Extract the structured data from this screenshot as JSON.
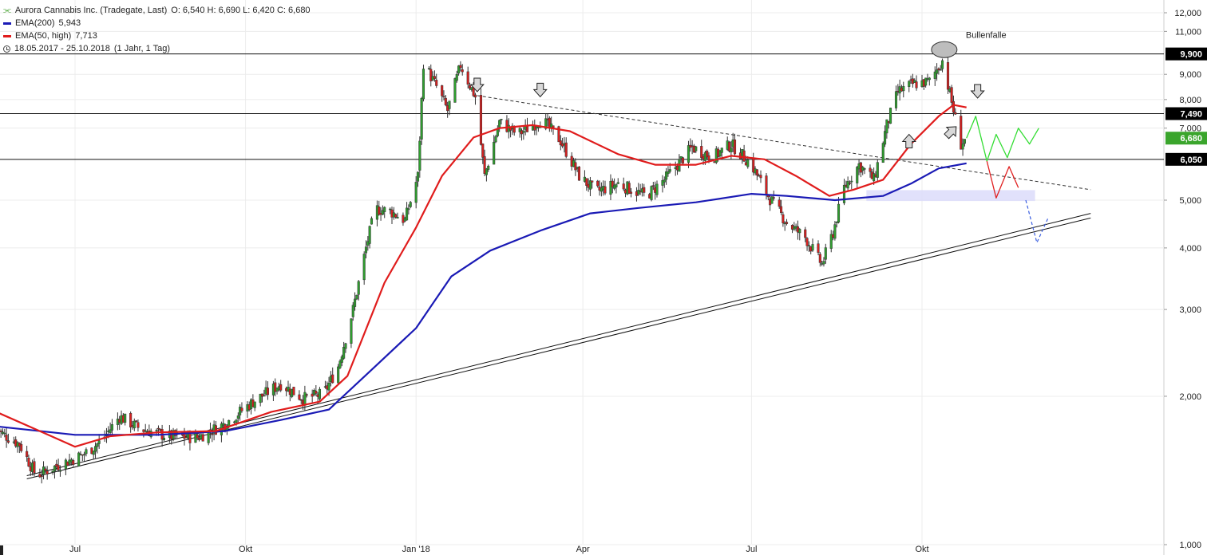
{
  "header": {
    "symbol_icon": "chart-icon",
    "title": "Aurora Cannabis Inc. (Tradegate, Last)",
    "ohlc": "O: 6,540  H: 6,690  L: 6,420  C: 6,680",
    "ema200_label": "EMA(200)",
    "ema200_value": "5,943",
    "ema50_label": "EMA(50, high)",
    "ema50_value": "7,713",
    "period": "18.05.2017 - 25.10.2018",
    "period_detail": "(1 Jahr, 1 Tag)",
    "colors": {
      "ema200": "#1a1ab5",
      "ema50": "#e01c1c",
      "up": "#2f9e2f",
      "down": "#d62020"
    }
  },
  "annotation_text": "Bullenfalle",
  "chart_data": {
    "type": "candlestick",
    "x_axis_labels": [
      "Jul",
      "Okt",
      "Jan '18",
      "Apr",
      "Jul",
      "Okt"
    ],
    "x_label_dates": [
      "2017-07-01",
      "2017-10-01",
      "2018-01-01",
      "2018-04-01",
      "2018-07-01",
      "2018-10-01"
    ],
    "x_range": [
      "2017-05-18",
      "2018-10-25"
    ],
    "y_scale": "log",
    "y_range": [
      1.0,
      12.5
    ],
    "y_ticks": [
      {
        "v": 12,
        "t": "12,000"
      },
      {
        "v": 11,
        "t": "11,000"
      },
      {
        "v": 9,
        "t": "9,000"
      },
      {
        "v": 8,
        "t": "8,000"
      },
      {
        "v": 7,
        "t": "7,000"
      },
      {
        "v": 5,
        "t": "5,000"
      },
      {
        "v": 4,
        "t": "4,000"
      },
      {
        "v": 3,
        "t": "3,000"
      },
      {
        "v": 2,
        "t": "2,000"
      },
      {
        "v": 1,
        "t": "1,000"
      }
    ],
    "price_markers": [
      {
        "v": 9.9,
        "t": "9,900",
        "color": "#000000"
      },
      {
        "v": 7.49,
        "t": "7,490",
        "color": "#000000"
      },
      {
        "v": 6.68,
        "t": "6,680",
        "color": "#3aa52c"
      },
      {
        "v": 6.05,
        "t": "6,050",
        "color": "#000000"
      }
    ],
    "horizontal_lines": [
      9.9,
      7.49,
      6.05
    ],
    "close_series_approx": [
      [
        "2017-05-18",
        1.72
      ],
      [
        "2017-06-01",
        1.6
      ],
      [
        "2017-06-10",
        1.38
      ],
      [
        "2017-06-22",
        1.45
      ],
      [
        "2017-07-05",
        1.52
      ],
      [
        "2017-07-15",
        1.62
      ],
      [
        "2017-07-25",
        1.82
      ],
      [
        "2017-08-05",
        1.72
      ],
      [
        "2017-08-20",
        1.66
      ],
      [
        "2017-09-05",
        1.65
      ],
      [
        "2017-09-20",
        1.76
      ],
      [
        "2017-10-05",
        1.95
      ],
      [
        "2017-10-20",
        2.12
      ],
      [
        "2017-11-01",
        1.98
      ],
      [
        "2017-11-12",
        2.02
      ],
      [
        "2017-11-20",
        2.3
      ],
      [
        "2017-11-28",
        3.0
      ],
      [
        "2017-12-05",
        4.0
      ],
      [
        "2017-12-10",
        4.8
      ],
      [
        "2017-12-18",
        4.75
      ],
      [
        "2017-12-26",
        4.55
      ],
      [
        "2018-01-02",
        5.6
      ],
      [
        "2018-01-05",
        9.5
      ],
      [
        "2018-01-12",
        8.5
      ],
      [
        "2018-01-18",
        7.6
      ],
      [
        "2018-01-25",
        9.4
      ],
      [
        "2018-02-02",
        8.1
      ],
      [
        "2018-02-07",
        5.6
      ],
      [
        "2018-02-15",
        7.2
      ],
      [
        "2018-02-25",
        6.8
      ],
      [
        "2018-03-10",
        7.3
      ],
      [
        "2018-03-20",
        6.6
      ],
      [
        "2018-03-30",
        5.6
      ],
      [
        "2018-04-08",
        5.2
      ],
      [
        "2018-04-20",
        5.4
      ],
      [
        "2018-05-05",
        5.1
      ],
      [
        "2018-05-15",
        5.5
      ],
      [
        "2018-05-30",
        6.4
      ],
      [
        "2018-06-10",
        6.1
      ],
      [
        "2018-06-20",
        6.5
      ],
      [
        "2018-07-01",
        5.9
      ],
      [
        "2018-07-10",
        5.1
      ],
      [
        "2018-07-20",
        4.5
      ],
      [
        "2018-07-30",
        4.2
      ],
      [
        "2018-08-08",
        3.7
      ],
      [
        "2018-08-14",
        4.3
      ],
      [
        "2018-08-20",
        5.3
      ],
      [
        "2018-08-28",
        5.9
      ],
      [
        "2018-09-05",
        5.5
      ],
      [
        "2018-09-12",
        7.1
      ],
      [
        "2018-09-18",
        8.3
      ],
      [
        "2018-09-26",
        8.6
      ],
      [
        "2018-10-05",
        8.7
      ],
      [
        "2018-10-12",
        9.6
      ],
      [
        "2018-10-17",
        7.9
      ],
      [
        "2018-10-22",
        6.5
      ],
      [
        "2018-10-25",
        6.68
      ]
    ],
    "ema50_approx": [
      [
        "2017-05-18",
        1.87
      ],
      [
        "2017-06-15",
        1.68
      ],
      [
        "2017-07-01",
        1.58
      ],
      [
        "2017-07-20",
        1.66
      ],
      [
        "2017-08-15",
        1.69
      ],
      [
        "2017-09-15",
        1.7
      ],
      [
        "2017-10-15",
        1.86
      ],
      [
        "2017-11-10",
        1.95
      ],
      [
        "2017-11-25",
        2.2
      ],
      [
        "2017-12-15",
        3.4
      ],
      [
        "2018-01-01",
        4.4
      ],
      [
        "2018-01-15",
        5.6
      ],
      [
        "2018-02-01",
        6.7
      ],
      [
        "2018-02-15",
        7.0
      ],
      [
        "2018-03-05",
        7.1
      ],
      [
        "2018-03-25",
        6.9
      ],
      [
        "2018-04-20",
        6.2
      ],
      [
        "2018-05-10",
        5.9
      ],
      [
        "2018-06-01",
        5.9
      ],
      [
        "2018-06-20",
        6.15
      ],
      [
        "2018-07-08",
        6.05
      ],
      [
        "2018-07-25",
        5.6
      ],
      [
        "2018-08-12",
        5.1
      ],
      [
        "2018-08-25",
        5.25
      ],
      [
        "2018-09-10",
        5.5
      ],
      [
        "2018-09-25",
        6.5
      ],
      [
        "2018-10-10",
        7.4
      ],
      [
        "2018-10-18",
        7.8
      ],
      [
        "2018-10-25",
        7.71
      ]
    ],
    "ema200_approx": [
      [
        "2017-05-18",
        1.74
      ],
      [
        "2017-07-01",
        1.67
      ],
      [
        "2017-08-15",
        1.67
      ],
      [
        "2017-09-20",
        1.7
      ],
      [
        "2017-10-20",
        1.79
      ],
      [
        "2017-11-15",
        1.88
      ],
      [
        "2017-12-10",
        2.3
      ],
      [
        "2018-01-01",
        2.75
      ],
      [
        "2018-01-20",
        3.5
      ],
      [
        "2018-02-10",
        3.95
      ],
      [
        "2018-03-10",
        4.35
      ],
      [
        "2018-04-05",
        4.7
      ],
      [
        "2018-05-01",
        4.82
      ],
      [
        "2018-06-01",
        4.95
      ],
      [
        "2018-07-01",
        5.15
      ],
      [
        "2018-07-20",
        5.1
      ],
      [
        "2018-08-15",
        5.0
      ],
      [
        "2018-09-10",
        5.1
      ],
      [
        "2018-09-25",
        5.4
      ],
      [
        "2018-10-10",
        5.8
      ],
      [
        "2018-10-25",
        5.94
      ]
    ],
    "scenario_green": [
      [
        "2018-10-25",
        6.68
      ],
      [
        "2018-10-30",
        7.4
      ],
      [
        "2018-11-05",
        6.0
      ],
      [
        "2018-11-10",
        6.8
      ],
      [
        "2018-11-16",
        6.1
      ],
      [
        "2018-11-22",
        7.0
      ],
      [
        "2018-11-28",
        6.5
      ],
      [
        "2018-12-03",
        7.0
      ]
    ],
    "scenario_red": [
      [
        "2018-11-05",
        6.0
      ],
      [
        "2018-11-10",
        5.05
      ],
      [
        "2018-11-17",
        5.85
      ],
      [
        "2018-11-22",
        5.3
      ]
    ],
    "scenario_blue_dashed": [
      [
        "2018-11-26",
        5.0
      ],
      [
        "2018-12-02",
        4.1
      ],
      [
        "2018-12-08",
        4.6
      ]
    ],
    "downtrend_dashed": [
      [
        "2018-02-03",
        8.15
      ],
      [
        "2018-12-31",
        5.25
      ]
    ],
    "uptrend_lines": [
      [
        [
          "2017-06-05",
          1.38
        ],
        [
          "2018-12-31",
          4.7
        ]
      ],
      [
        [
          "2017-06-05",
          1.36
        ],
        [
          "2018-12-31",
          4.6
        ]
      ]
    ],
    "support_zone": [
      [
        "2018-09-01",
        5.24
      ],
      [
        "2018-12-01",
        4.98
      ]
    ],
    "arrows": [
      {
        "date": "2018-02-03",
        "v": 8.55,
        "dir": "down"
      },
      {
        "date": "2018-03-09",
        "v": 8.35,
        "dir": "down"
      },
      {
        "date": "2018-09-24",
        "v": 6.6,
        "dir": "up"
      },
      {
        "date": "2018-10-17",
        "v": 6.9,
        "dir": "up-left"
      },
      {
        "date": "2018-10-31",
        "v": 8.3,
        "dir": "down"
      }
    ],
    "ellipse": {
      "date": "2018-10-13",
      "v": 10.1
    }
  }
}
